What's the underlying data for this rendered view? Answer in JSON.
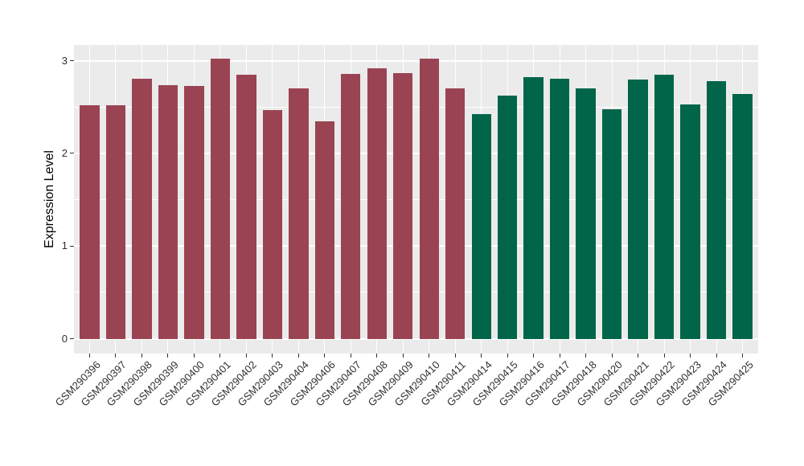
{
  "figure": {
    "background": "#FFFFFF",
    "panel_background": "#EBEBEB",
    "grid_color": "#FFFFFF",
    "axis_text_color": "#303030",
    "axis_title_color": "#000000"
  },
  "chart_data": {
    "type": "bar",
    "title": "",
    "xlabel": "",
    "ylabel": "Expression Level",
    "categories": [
      "GSM290396",
      "GSM290397",
      "GSM290398",
      "GSM290399",
      "GSM290400",
      "GSM290401",
      "GSM290402",
      "GSM290403",
      "GSM290404",
      "GSM290406",
      "GSM290407",
      "GSM290408",
      "GSM290409",
      "GSM290410",
      "GSM290411",
      "GSM290414",
      "GSM290415",
      "GSM290416",
      "GSM290417",
      "GSM290418",
      "GSM290420",
      "GSM290421",
      "GSM290422",
      "GSM290423",
      "GSM290424",
      "GSM290425"
    ],
    "values": [
      2.52,
      2.52,
      2.81,
      2.74,
      2.73,
      3.02,
      2.85,
      2.47,
      2.7,
      2.35,
      2.86,
      2.92,
      2.87,
      3.02,
      2.7,
      2.42,
      2.62,
      2.82,
      2.81,
      2.7,
      2.48,
      2.8,
      2.85,
      2.53,
      2.78,
      2.64
    ],
    "groups": [
      0,
      0,
      0,
      0,
      0,
      0,
      0,
      0,
      0,
      0,
      0,
      0,
      0,
      0,
      0,
      1,
      1,
      1,
      1,
      1,
      1,
      1,
      1,
      1,
      1,
      1
    ],
    "group_colors": [
      "#9A4453",
      "#006549"
    ],
    "yticks": [
      0,
      1,
      2,
      3
    ],
    "minor_yticks": [
      0.5,
      1.5,
      2.5
    ],
    "ylim": [
      0,
      3.17
    ],
    "grid": "on",
    "legend": "none",
    "x_label_angle_deg": 45
  }
}
